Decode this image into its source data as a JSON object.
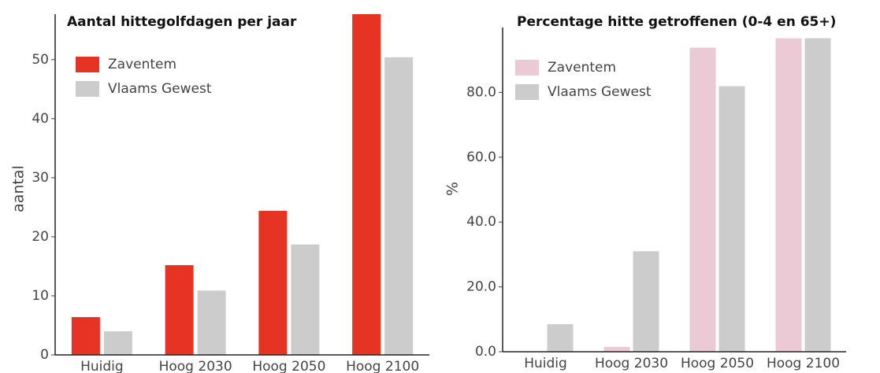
{
  "chart_data": [
    {
      "type": "bar",
      "title": "Aantal hittegolfdagen per jaar",
      "y_label": "aantal",
      "categories": [
        "Huidig",
        "Hoog 2030",
        "Hoog 2050",
        "Hoog 2100"
      ],
      "series": [
        {
          "name": "Zaventem",
          "color": "#e63323",
          "values": [
            6.4,
            15.2,
            24.4,
            58
          ]
        },
        {
          "name": "Vlaams Gewest",
          "color": "#cccccc",
          "values": [
            4.0,
            10.9,
            18.7,
            50.4
          ]
        }
      ],
      "ylim": [
        0,
        57.7
      ],
      "yticks": [
        0,
        10,
        20,
        30,
        40,
        50
      ],
      "legend": "upper left"
    },
    {
      "type": "bar",
      "title": "Percentage hitte getroffenen (0-4 en 65+)",
      "y_label": "%",
      "categories": [
        "Huidig",
        "Hoog 2030",
        "Hoog 2050",
        "Hoog 2100"
      ],
      "series": [
        {
          "name": "Zaventem",
          "color": "#ebcad5",
          "values": [
            0,
            1.5,
            93.8,
            96.7
          ]
        },
        {
          "name": "Vlaams Gewest",
          "color": "#cccccc",
          "values": [
            8.5,
            31.0,
            81.9,
            96.7
          ]
        }
      ],
      "ylim": [
        0,
        100
      ],
      "yticks": [
        {
          "value": 0,
          "label": "0.0"
        },
        {
          "value": 20,
          "label": "20.0"
        },
        {
          "value": 40,
          "label": "40.0"
        },
        {
          "value": 60,
          "label": "60.0"
        },
        {
          "value": 80,
          "label": "80.0"
        }
      ],
      "legend": "upper left"
    }
  ]
}
